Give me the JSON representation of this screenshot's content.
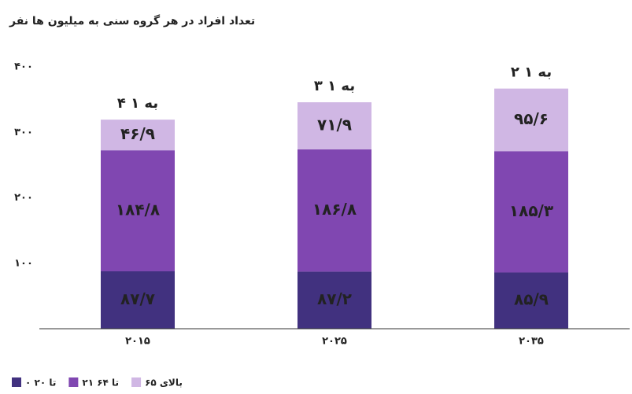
{
  "chart_data": {
    "type": "stacked_bar",
    "title": "تعداد افراد در هر گروه سنی به میلیون ها نفر",
    "categories": [
      "۲۰۱۵",
      "۲۰۲۵",
      "۲۰۳۵"
    ],
    "annotations": [
      "۴ به ۱",
      "۳ به ۱",
      "۲ به ۱"
    ],
    "series": [
      {
        "name": "۰ تا ۲۰",
        "color": "#41317f",
        "values": [
          87.7,
          87.2,
          85.9
        ],
        "value_labels": [
          "۸۷/۷",
          "۸۷/۲",
          "۸۵/۹"
        ]
      },
      {
        "name": "۲۱ تا ۶۴",
        "color": "#8047b1",
        "values": [
          184.8,
          186.8,
          185.3
        ],
        "value_labels": [
          "۱۸۴/۸",
          "۱۸۶/۸",
          "۱۸۵/۳"
        ]
      },
      {
        "name": "بالای ۶۵",
        "color": "#d0b7e4",
        "values": [
          46.9,
          71.9,
          95.6
        ],
        "value_labels": [
          "۴۶/۹",
          "۷۱/۹",
          "۹۵/۶"
        ]
      }
    ],
    "ylim": [
      0,
      400
    ],
    "yticks": [
      {
        "value": 100,
        "label": "۱۰۰"
      },
      {
        "value": 200,
        "label": "۲۰۰"
      },
      {
        "value": 300,
        "label": "۳۰۰"
      },
      {
        "value": 400,
        "label": "۴۰۰"
      }
    ],
    "grid": false,
    "legend": "bottom-left"
  }
}
